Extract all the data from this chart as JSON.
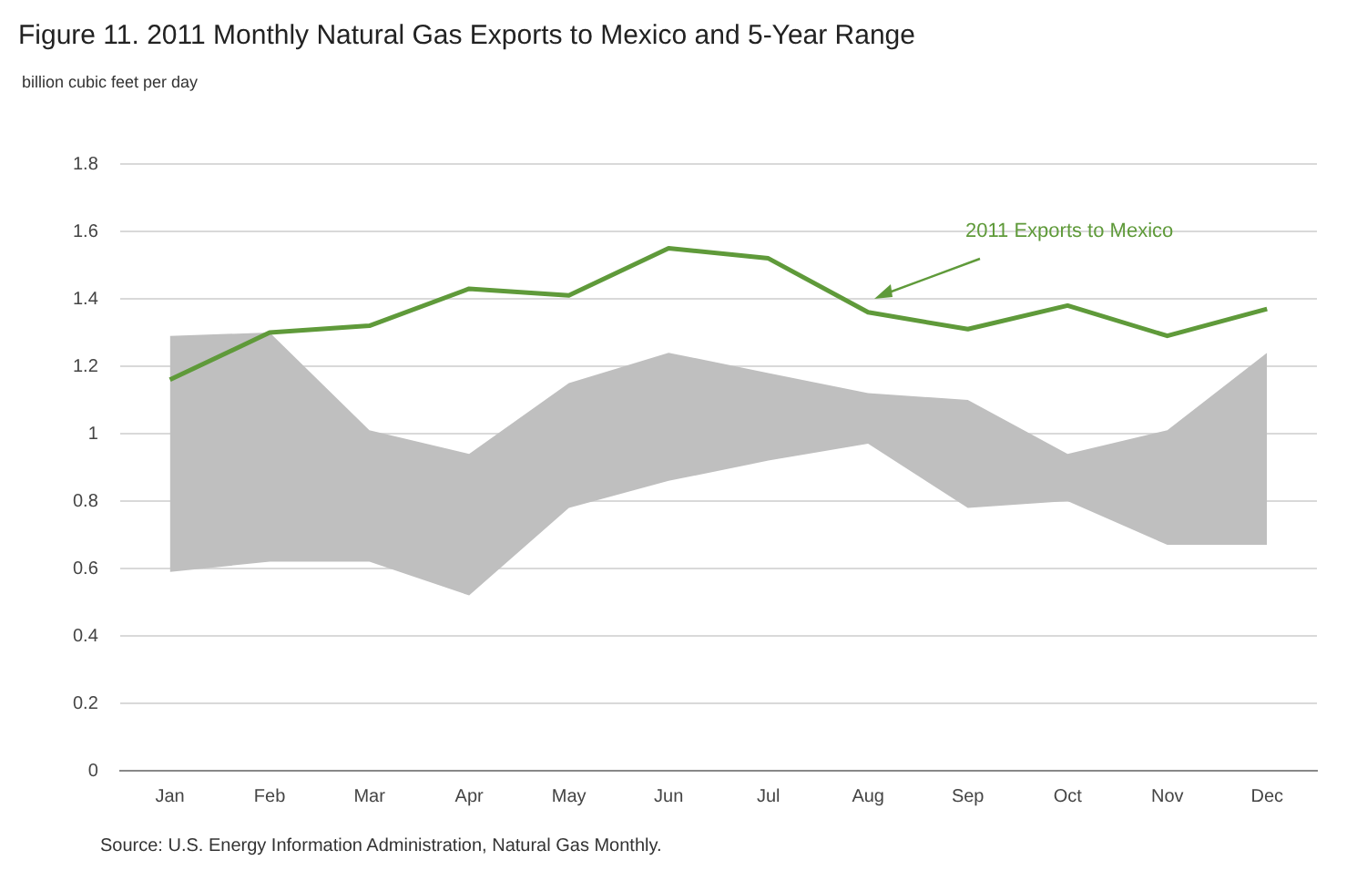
{
  "chart_data": {
    "type": "line",
    "title": "Figure 11. 2011 Monthly Natural Gas Exports to Mexico and 5-Year Range",
    "ylabel": "billion cubic feet per day",
    "categories": [
      "Jan",
      "Feb",
      "Mar",
      "Apr",
      "May",
      "Jun",
      "Jul",
      "Aug",
      "Sep",
      "Oct",
      "Nov",
      "Dec"
    ],
    "series": [
      {
        "type": "line",
        "color": "#bfbfbf",
        "values": [
          null,
          null,
          null,
          null,
          null,
          null,
          null,
          null,
          null,
          null,
          null,
          null
        ],
        "lower": [
          0.59,
          0.62,
          0.62,
          0.52,
          0.78,
          0.86,
          0.92,
          0.97,
          0.78,
          0.8,
          0.67,
          0.67
        ],
        "upper": [
          1.29,
          1.3,
          1.01,
          0.94,
          1.15,
          1.24,
          1.18,
          1.12,
          1.1,
          0.94,
          1.01,
          1.24
        ]
      },
      {
        "type": "line",
        "name": "2011 Exports to Mexico",
        "color": "#5f9a3a",
        "values": [
          1.16,
          1.3,
          1.32,
          1.43,
          1.41,
          1.55,
          1.52,
          1.36,
          1.31,
          1.38,
          1.29,
          1.37
        ]
      }
    ],
    "ylim": [
      0,
      1.8
    ],
    "yticks": [
      0,
      0.2,
      0.4,
      0.6,
      0.8,
      1,
      1.2,
      1.4,
      1.6,
      1.8
    ],
    "grid": "y",
    "legend": false,
    "marker": "none",
    "line_style": "solid",
    "annotations": [
      "Source: U.S. Energy Information Administration, Natural Gas Monthly."
    ]
  }
}
